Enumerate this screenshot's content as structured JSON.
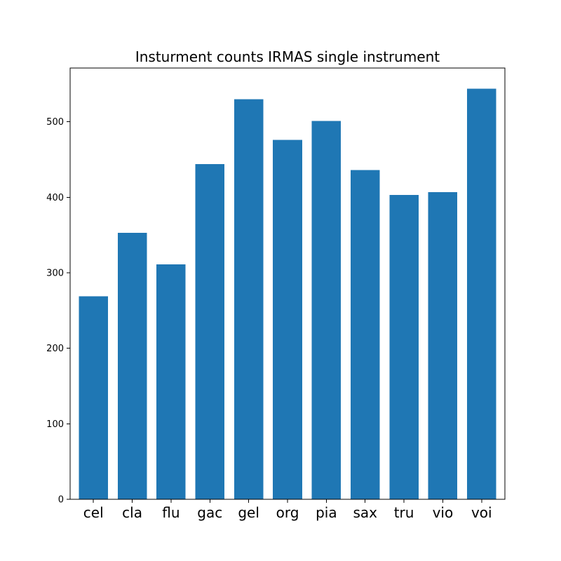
{
  "chart_data": {
    "type": "bar",
    "title": "Insturment counts IRMAS single instrument",
    "xlabel": "",
    "ylabel": "",
    "categories": [
      "cel",
      "cla",
      "flu",
      "gac",
      "gel",
      "org",
      "pia",
      "sax",
      "tru",
      "vio",
      "voi"
    ],
    "values": [
      269,
      353,
      311,
      444,
      530,
      476,
      501,
      436,
      403,
      407,
      544
    ],
    "ylim": [
      0,
      571.2
    ],
    "yticks": [
      0,
      100,
      200,
      300,
      400,
      500
    ],
    "grid": false,
    "legend": "none",
    "bar_color": "#1f77b4"
  }
}
